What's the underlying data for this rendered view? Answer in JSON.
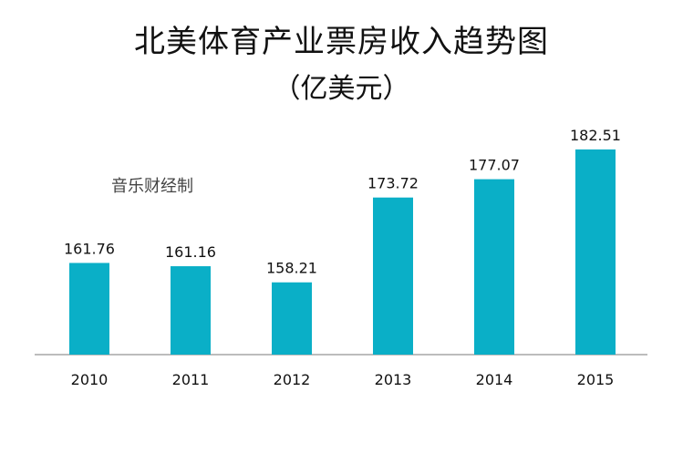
{
  "watermark": "音乐财经制",
  "chart_data": {
    "type": "bar",
    "title": "北美体育产业票房收入趋势图",
    "subtitle": "（亿美元）",
    "xlabel": "",
    "ylabel": "",
    "categories": [
      "2010",
      "2011",
      "2012",
      "2013",
      "2014",
      "2015"
    ],
    "values": [
      161.76,
      161.16,
      158.21,
      173.72,
      177.07,
      182.51
    ],
    "data_labels": [
      "161.76",
      "161.16",
      "158.21",
      "173.72",
      "177.07",
      "182.51"
    ],
    "ylim": [
      145,
      184
    ],
    "grid": false,
    "legend": "none",
    "colors": {
      "bar": "#0AAFC7",
      "axis": "#A6A6A6",
      "text": "#111111"
    }
  }
}
